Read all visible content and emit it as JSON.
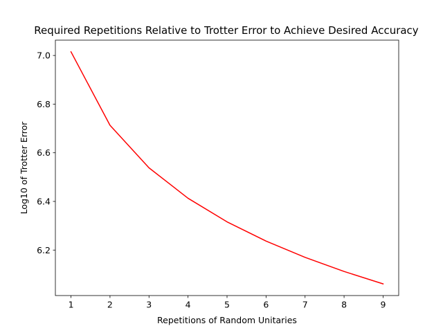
{
  "chart_data": {
    "type": "line",
    "title": "Required Repetitions Relative to Trotter Error to Achieve Desired Accuracy",
    "xlabel": "Repetitions of Random Unitaries",
    "ylabel": "Log10 of Trotter Error",
    "x": [
      1,
      2,
      3,
      4,
      5,
      6,
      7,
      8,
      9
    ],
    "series": [
      {
        "values": [
          7.015,
          6.713,
          6.538,
          6.413,
          6.316,
          6.237,
          6.17,
          6.112,
          6.061
        ],
        "color": "#ff0000"
      }
    ],
    "xlim": [
      0.6,
      9.4
    ],
    "ylim": [
      6.013,
      7.063
    ],
    "xticks": [
      1,
      2,
      3,
      4,
      5,
      6,
      7,
      8,
      9
    ],
    "yticks": [
      6.2,
      6.4,
      6.6,
      6.8,
      7.0
    ],
    "xtick_labels": [
      "1",
      "2",
      "3",
      "4",
      "5",
      "6",
      "7",
      "8",
      "9"
    ],
    "ytick_labels": [
      "6.2",
      "6.4",
      "6.6",
      "6.8",
      "7.0"
    ],
    "grid": false,
    "legend": "none"
  }
}
